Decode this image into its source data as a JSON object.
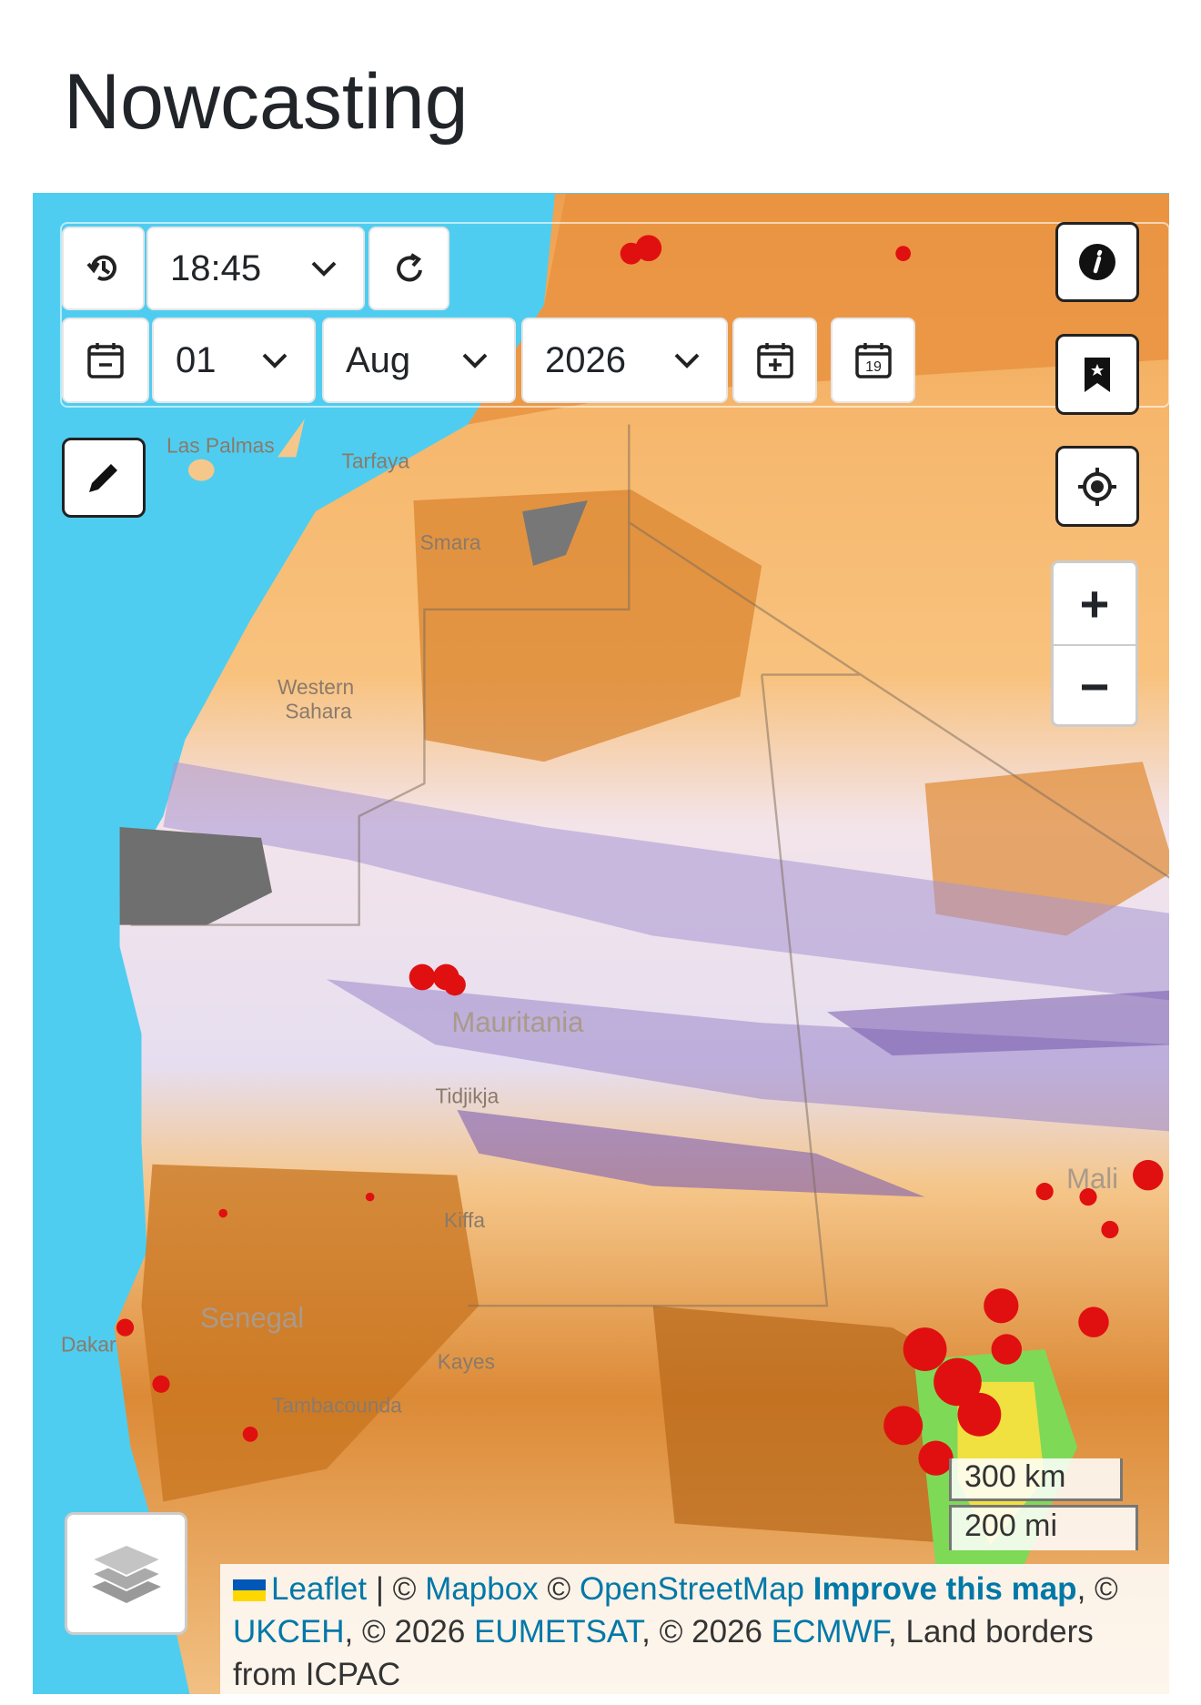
{
  "header": {
    "title": "Nowcasting"
  },
  "controls": {
    "time": "18:45",
    "day": "01",
    "month": "Aug",
    "year": "2026",
    "calendar_day": "19",
    "zoom_in": "+",
    "zoom_out": "−"
  },
  "map": {
    "labels": [
      "Las Palmas",
      "Tarfaya",
      "Western",
      "Sahara",
      "Mauritania",
      "Tidjikja",
      "Kiffa",
      "Senegal",
      "Kayes",
      "Tambacounda",
      "Mali",
      "Dakar",
      "Smara"
    ]
  },
  "scale": {
    "metric": "300 km",
    "imperial": "200 mi"
  },
  "attribution": [
    {
      "text": "Leaflet",
      "link": true
    },
    {
      "text": " | © ",
      "link": false
    },
    {
      "text": "Mapbox",
      "link": true
    },
    {
      "text": " © ",
      "link": false
    },
    {
      "text": "OpenStreetMap",
      "link": true
    },
    {
      "text": " ",
      "link": false
    },
    {
      "text": "Improve this map",
      "link": true,
      "bold": true
    },
    {
      "text": ", © ",
      "link": false
    },
    {
      "text": "UKCEH",
      "link": true
    },
    {
      "text": ", © 2026 ",
      "link": false
    },
    {
      "text": "EUMETSAT",
      "link": true
    },
    {
      "text": ", © 2026 ",
      "link": false
    },
    {
      "text": "ECMWF",
      "link": true
    },
    {
      "text": ", Land borders from ICPAC",
      "link": false
    }
  ]
}
